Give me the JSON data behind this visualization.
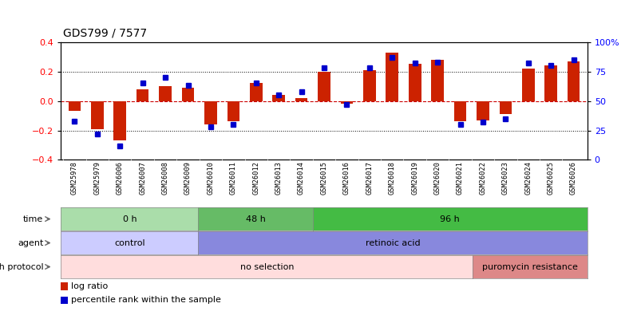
{
  "title": "GDS799 / 7577",
  "samples": [
    "GSM25978",
    "GSM25979",
    "GSM26006",
    "GSM26007",
    "GSM26008",
    "GSM26009",
    "GSM26010",
    "GSM26011",
    "GSM26012",
    "GSM26013",
    "GSM26014",
    "GSM26015",
    "GSM26016",
    "GSM26017",
    "GSM26018",
    "GSM26019",
    "GSM26020",
    "GSM26021",
    "GSM26022",
    "GSM26023",
    "GSM26024",
    "GSM26025",
    "GSM26026"
  ],
  "log_ratio": [
    -0.07,
    -0.19,
    -0.27,
    0.08,
    0.1,
    0.09,
    -0.16,
    -0.14,
    0.12,
    0.04,
    0.02,
    0.2,
    -0.02,
    0.21,
    0.33,
    0.25,
    0.28,
    -0.14,
    -0.13,
    -0.09,
    0.22,
    0.24,
    0.27
  ],
  "percentile": [
    33,
    22,
    12,
    65,
    70,
    63,
    28,
    30,
    65,
    55,
    58,
    78,
    47,
    78,
    87,
    82,
    83,
    30,
    32,
    35,
    82,
    80,
    85
  ],
  "ylim_left": [
    -0.4,
    0.4
  ],
  "ylim_right": [
    0,
    100
  ],
  "yticks_left": [
    -0.4,
    -0.2,
    0.0,
    0.2,
    0.4
  ],
  "yticks_right": [
    0,
    25,
    50,
    75,
    100
  ],
  "hlines": [
    0.2,
    -0.2
  ],
  "bar_color": "#cc2200",
  "dot_color": "#0000cc",
  "zero_line_color": "#cc0000",
  "time_groups": [
    {
      "label": "0 h",
      "start": 0,
      "end": 5,
      "color": "#aaddaa"
    },
    {
      "label": "48 h",
      "start": 6,
      "end": 10,
      "color": "#66bb66"
    },
    {
      "label": "96 h",
      "start": 11,
      "end": 22,
      "color": "#44bb44"
    }
  ],
  "agent_groups": [
    {
      "label": "control",
      "start": 0,
      "end": 5,
      "color": "#ccccff"
    },
    {
      "label": "retinoic acid",
      "start": 6,
      "end": 22,
      "color": "#8888dd"
    }
  ],
  "growth_groups": [
    {
      "label": "no selection",
      "start": 0,
      "end": 17,
      "color": "#ffdddd"
    },
    {
      "label": "puromycin resistance",
      "start": 18,
      "end": 22,
      "color": "#dd8888"
    }
  ],
  "row_labels": [
    "time",
    "agent",
    "growth protocol"
  ],
  "legend_items": [
    {
      "label": "log ratio",
      "color": "#cc2200"
    },
    {
      "label": "percentile rank within the sample",
      "color": "#0000cc"
    }
  ]
}
